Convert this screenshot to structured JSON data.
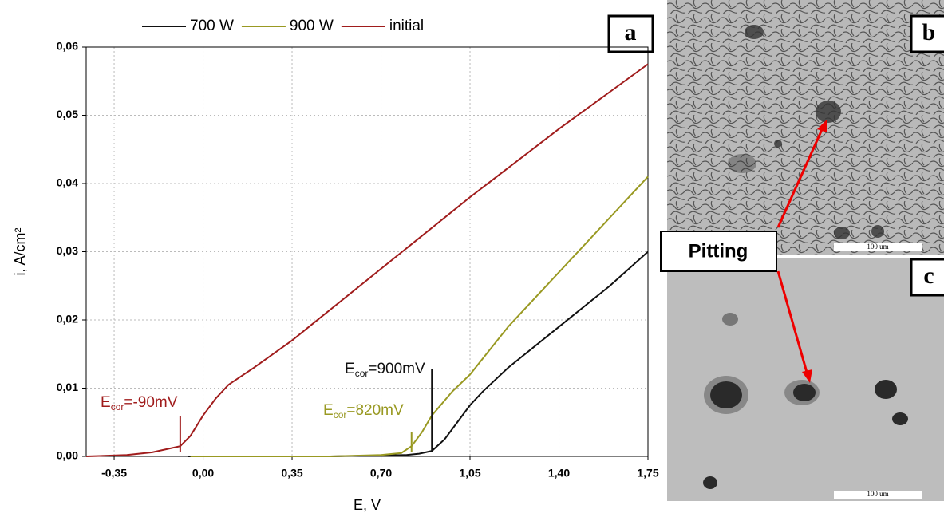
{
  "chart_data": {
    "type": "line",
    "legend": "top",
    "xlabel": "E, V",
    "ylabel": "i, A/cm²",
    "xlim": [
      -0.46,
      1.75
    ],
    "ylim": [
      0,
      0.06
    ],
    "xticks": [
      {
        "value": -0.35,
        "label": "-0,35"
      },
      {
        "value": 0,
        "label": "0,00"
      },
      {
        "value": 0.35,
        "label": "0,35"
      },
      {
        "value": 0.7,
        "label": "0,70"
      },
      {
        "value": 1.05,
        "label": "1,05"
      },
      {
        "value": 1.4,
        "label": "1,40"
      },
      {
        "value": 1.75,
        "label": "1,75"
      }
    ],
    "yticks": [
      {
        "value": 0,
        "label": "0,00"
      },
      {
        "value": 0.01,
        "label": "0,01"
      },
      {
        "value": 0.02,
        "label": "0,02"
      },
      {
        "value": 0.03,
        "label": "0,03"
      },
      {
        "value": 0.04,
        "label": "0,04"
      },
      {
        "value": 0.05,
        "label": "0,05"
      },
      {
        "value": 0.06,
        "label": "0,06"
      }
    ],
    "grid": true,
    "series": [
      {
        "name": "700 W",
        "color": "#111111",
        "x": [
          -0.06,
          0.2,
          0.5,
          0.8,
          0.85,
          0.9,
          0.95,
          1.0,
          1.05,
          1.1,
          1.2,
          1.4,
          1.6,
          1.75
        ],
        "values": [
          0,
          0,
          0,
          0.0002,
          0.0004,
          0.0008,
          0.0025,
          0.005,
          0.0075,
          0.0095,
          0.013,
          0.019,
          0.025,
          0.03
        ]
      },
      {
        "name": "900 W",
        "color": "#999922",
        "x": [
          -0.05,
          0.2,
          0.5,
          0.7,
          0.78,
          0.82,
          0.86,
          0.9,
          0.98,
          1.05,
          1.2,
          1.4,
          1.6,
          1.75
        ],
        "values": [
          0,
          0,
          0,
          0.0002,
          0.0005,
          0.0015,
          0.0035,
          0.006,
          0.0095,
          0.012,
          0.019,
          0.027,
          0.035,
          0.041
        ]
      },
      {
        "name": "initial",
        "color": "#a01c1c",
        "x": [
          -0.46,
          -0.3,
          -0.2,
          -0.09,
          -0.05,
          0,
          0.05,
          0.1,
          0.2,
          0.35,
          0.7,
          1.05,
          1.4,
          1.75
        ],
        "values": [
          0,
          0.0002,
          0.0006,
          0.0015,
          0.003,
          0.006,
          0.0085,
          0.0105,
          0.013,
          0.017,
          0.0275,
          0.038,
          0.048,
          0.0575
        ]
      }
    ],
    "annotations": [
      {
        "series": 2,
        "x": -0.09,
        "text": "E",
        "sub": "cor",
        "rest": "=-90mV"
      },
      {
        "series": 1,
        "x": 0.82,
        "text": "E",
        "sub": "cor",
        "rest": "=820mV"
      },
      {
        "series": 0,
        "x": 0.9,
        "text": "E",
        "sub": "cor",
        "rest": "=900mV"
      }
    ]
  },
  "panels": {
    "a": "a",
    "b": "b",
    "c": "c",
    "pitting": "Pitting",
    "scale_b": "100 um",
    "scale_c": "100 um"
  }
}
